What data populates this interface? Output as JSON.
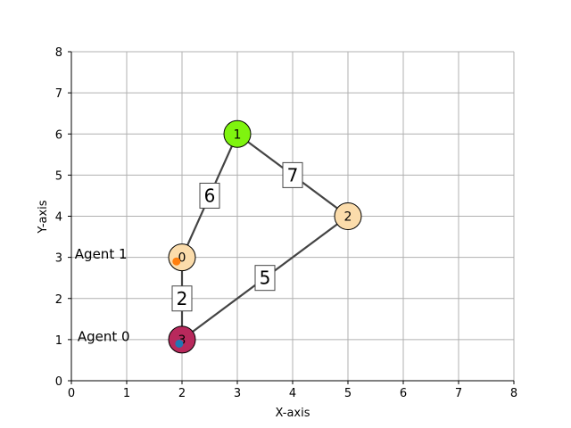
{
  "xlabel": "X-axis",
  "ylabel": "Y-axis",
  "xlim": [
    0,
    8
  ],
  "ylim": [
    0,
    8
  ],
  "ticks": {
    "x": [
      "0",
      "1",
      "2",
      "3",
      "4",
      "5",
      "6",
      "7",
      "8"
    ],
    "y": [
      "0",
      "1",
      "2",
      "3",
      "4",
      "5",
      "6",
      "7",
      "8"
    ]
  },
  "grid": true,
  "nodes": [
    {
      "id": "0",
      "x": 2,
      "y": 3,
      "color": "#fbdcab"
    },
    {
      "id": "1",
      "x": 3,
      "y": 6,
      "color": "#7ff40f"
    },
    {
      "id": "2",
      "x": 5,
      "y": 4,
      "color": "#fbdcab"
    },
    {
      "id": "3",
      "x": 2,
      "y": 1,
      "color": "#b8295c"
    }
  ],
  "edges": [
    {
      "from": "0",
      "to": "1",
      "weight": "6"
    },
    {
      "from": "1",
      "to": "2",
      "weight": "7"
    },
    {
      "from": "2",
      "to": "3",
      "weight": "5"
    },
    {
      "from": "0",
      "to": "3",
      "weight": "2"
    }
  ],
  "agents": [
    {
      "label": "Agent 0",
      "x": 1.95,
      "y": 0.9,
      "color": "#1f77b4"
    },
    {
      "label": "Agent 1",
      "x": 1.9,
      "y": 2.9,
      "color": "#ff7f0e"
    }
  ]
}
